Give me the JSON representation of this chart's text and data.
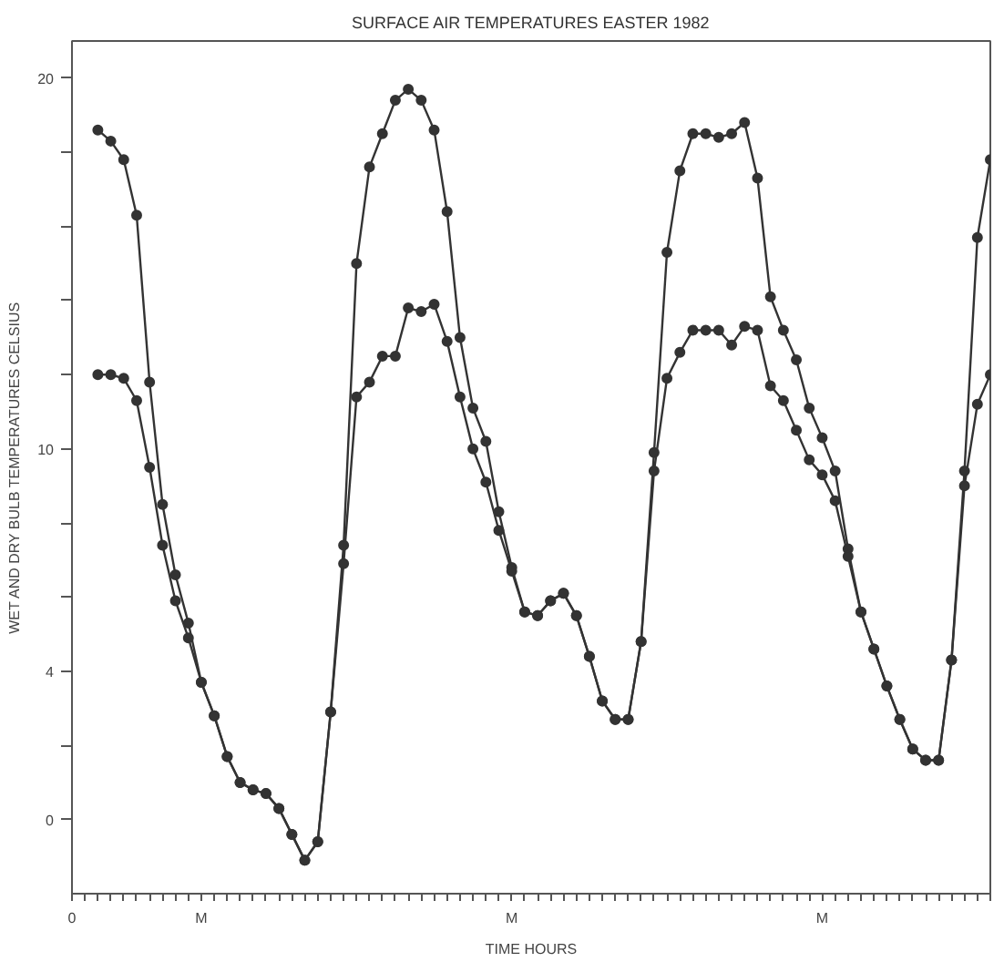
{
  "chart_data": {
    "type": "line",
    "title": "SURFACE AIR TEMPERATURES EASTER 1982",
    "xlabel": "TIME HOURS",
    "ylabel": "WET AND DRY BULB TEMPERATURES CELSIUS",
    "categories": [
      "0",
      null,
      null,
      null,
      null,
      null,
      null,
      null,
      null,
      null,
      "M",
      null,
      null,
      null,
      null,
      null,
      null,
      null,
      null,
      null,
      null,
      null,
      null,
      null,
      null,
      null,
      null,
      null,
      null,
      null,
      null,
      null,
      null,
      null,
      "M",
      null,
      null,
      null,
      null,
      null,
      null,
      null,
      null,
      null,
      null,
      null,
      null,
      null,
      null,
      null,
      null,
      null,
      null,
      null,
      null,
      null,
      null,
      null,
      "M",
      null,
      null,
      null,
      null,
      null,
      null,
      null,
      null,
      null,
      null,
      null,
      null,
      null
    ],
    "series": [
      {
        "color": "#333333",
        "values": [
          null,
          null,
          18.6,
          18.3,
          17.8,
          16.3,
          11.8,
          8.5,
          6.6,
          5.3,
          3.7,
          2.8,
          1.7,
          1.0,
          0.8,
          0.7,
          0.3,
          -0.4,
          -1.1,
          -0.6,
          2.9,
          7.4,
          15.0,
          17.6,
          18.5,
          19.4,
          19.7,
          19.4,
          18.6,
          16.4,
          13.0,
          11.1,
          10.2,
          8.3,
          6.8,
          5.6,
          5.5,
          5.9,
          6.1,
          5.5,
          4.4,
          3.2,
          2.7,
          2.7,
          4.8,
          9.9,
          15.3,
          17.5,
          18.5,
          18.5,
          18.4,
          18.5,
          18.8,
          17.3,
          14.1,
          13.2,
          12.4,
          11.1,
          10.3,
          9.4,
          7.3,
          5.6,
          4.6,
          3.6,
          2.7,
          1.9,
          1.6,
          1.6,
          4.3,
          9.4,
          15.7,
          17.8
        ]
      },
      {
        "color": "#333333",
        "values": [
          null,
          null,
          12.0,
          12.0,
          11.9,
          11.3,
          9.5,
          7.4,
          5.9,
          4.9,
          3.7,
          2.8,
          1.7,
          1.0,
          0.8,
          0.7,
          0.3,
          -0.4,
          -1.1,
          -0.6,
          2.9,
          6.9,
          11.4,
          11.8,
          12.5,
          12.5,
          13.8,
          13.7,
          13.9,
          12.9,
          11.4,
          10.0,
          9.1,
          7.8,
          6.7,
          5.6,
          5.5,
          5.9,
          6.1,
          5.5,
          4.4,
          3.2,
          2.7,
          2.7,
          4.8,
          9.4,
          11.9,
          12.6,
          13.2,
          13.2,
          13.2,
          12.8,
          13.3,
          13.2,
          11.7,
          11.3,
          10.5,
          9.7,
          9.3,
          8.6,
          7.1,
          5.6,
          4.6,
          3.6,
          2.7,
          1.9,
          1.6,
          1.6,
          4.3,
          9.0,
          11.2,
          12.0
        ]
      }
    ],
    "ylim": [
      -2,
      21
    ],
    "yticks": [
      0,
      {
        "value": 2,
        "label": null
      },
      4,
      {
        "value": 6,
        "label": null
      },
      {
        "value": 8,
        "label": null
      },
      10,
      {
        "value": 12,
        "label": null
      },
      {
        "value": 14,
        "label": null
      },
      {
        "value": 16,
        "label": null
      },
      {
        "value": 18,
        "label": null
      },
      20
    ],
    "marker": "circle",
    "line_style": "solid",
    "grid": false
  }
}
